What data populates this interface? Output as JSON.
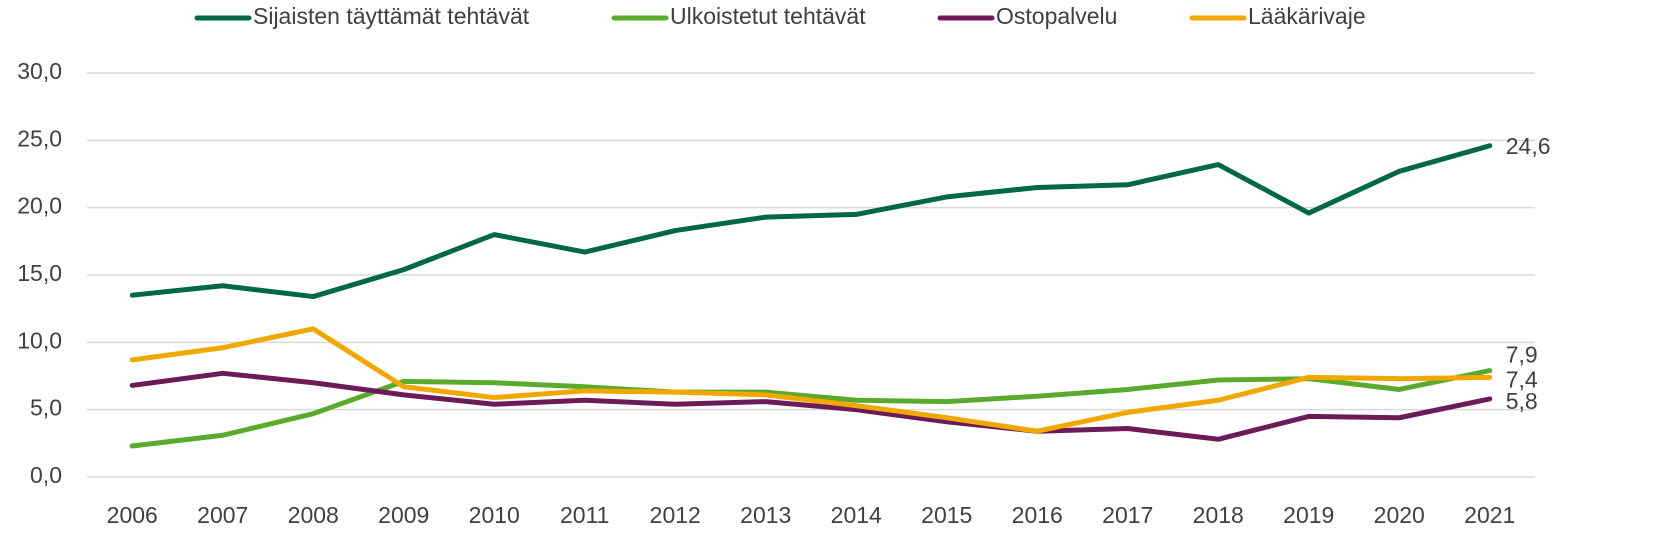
{
  "chart_data": {
    "type": "line",
    "categories": [
      "2006",
      "2007",
      "2008",
      "2009",
      "2010",
      "2011",
      "2012",
      "2013",
      "2014",
      "2015",
      "2016",
      "2017",
      "2018",
      "2019",
      "2020",
      "2021"
    ],
    "series": [
      {
        "name": "Sijaisten täyttämät tehtävät",
        "color": "#006846",
        "values": [
          13.5,
          14.2,
          13.4,
          15.4,
          18.0,
          16.7,
          18.3,
          19.3,
          19.5,
          20.8,
          21.5,
          21.7,
          23.2,
          19.6,
          22.7,
          24.6
        ],
        "value_labels": [
          null,
          null,
          null,
          null,
          null,
          null,
          null,
          null,
          null,
          null,
          null,
          null,
          null,
          null,
          null,
          "24,6"
        ]
      },
      {
        "name": "Ulkoistetut tehtävät",
        "color": "#5aab2d",
        "values": [
          2.3,
          3.1,
          4.7,
          7.1,
          7.0,
          6.7,
          6.3,
          6.3,
          5.7,
          5.6,
          6.0,
          6.5,
          7.2,
          7.3,
          6.5,
          7.9
        ],
        "value_labels": [
          null,
          null,
          null,
          null,
          null,
          null,
          null,
          null,
          null,
          null,
          null,
          null,
          null,
          null,
          null,
          "7,9"
        ]
      },
      {
        "name": "Ostopalvelu",
        "color": "#6d1a58",
        "values": [
          6.8,
          7.7,
          7.0,
          6.1,
          5.4,
          5.7,
          5.4,
          5.6,
          5.0,
          4.1,
          3.4,
          3.6,
          2.8,
          4.5,
          4.4,
          5.8
        ],
        "value_labels": [
          null,
          null,
          null,
          null,
          null,
          null,
          null,
          null,
          null,
          null,
          null,
          null,
          null,
          null,
          null,
          "5,8"
        ]
      },
      {
        "name": "Lääkärivaje",
        "color": "#f0a800",
        "values": [
          8.7,
          9.6,
          11.0,
          6.7,
          5.9,
          6.4,
          6.3,
          6.1,
          5.3,
          4.4,
          3.4,
          4.8,
          5.7,
          7.4,
          7.3,
          7.4
        ],
        "value_labels": [
          null,
          null,
          null,
          null,
          null,
          null,
          null,
          null,
          null,
          null,
          null,
          null,
          null,
          null,
          null,
          "7,4"
        ]
      }
    ],
    "ylim": [
      0,
      30
    ],
    "yticks": [
      {
        "value": 0,
        "label": "0,0"
      },
      {
        "value": 5,
        "label": "5,0"
      },
      {
        "value": 10,
        "label": "10,0"
      },
      {
        "value": 15,
        "label": "15,0"
      },
      {
        "value": 20,
        "label": "20,0"
      },
      {
        "value": 25,
        "label": "25,0"
      },
      {
        "value": 30,
        "label": "30,0"
      }
    ],
    "grid": true,
    "legend": "top"
  }
}
